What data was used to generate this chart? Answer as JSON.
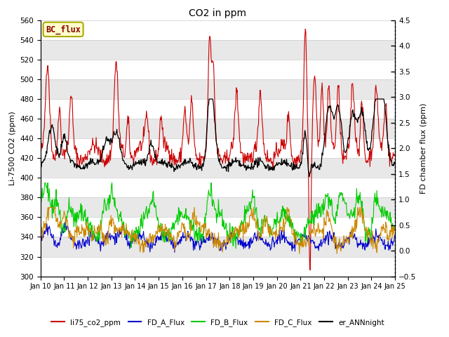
{
  "title": "CO2 in ppm",
  "ylabel_left": "Li-7500 CO2 (ppm)",
  "ylabel_right": "FD chamber flux (ppm)",
  "ylim_left": [
    300,
    560
  ],
  "ylim_right": [
    -0.5,
    4.5
  ],
  "xtick_labels": [
    "Jan 10",
    "Jan 11",
    "Jan 12",
    "Jan 13",
    "Jan 14",
    "Jan 15",
    "Jan 16",
    "Jan 17",
    "Jan 18",
    "Jan 19",
    "Jan 20",
    "Jan 21",
    "Jan 22",
    "Jan 23",
    "Jan 24",
    "Jan 25"
  ],
  "legend_entries": [
    "li75_co2_ppm",
    "FD_A_Flux",
    "FD_B_Flux",
    "FD_C_Flux",
    "er_ANNnight"
  ],
  "legend_colors": [
    "#cc0000",
    "#0000cc",
    "#00cc00",
    "#cc8800",
    "#000000"
  ],
  "bc_flux_label": "BC_flux",
  "bc_flux_color": "#880000",
  "bc_flux_bg": "#ffffcc",
  "bc_flux_border": "#aaaa00",
  "grid_color": "#cccccc",
  "band_color": "#e8e8e8",
  "title_fontsize": 10,
  "axis_fontsize": 8,
  "tick_fontsize": 7.5
}
